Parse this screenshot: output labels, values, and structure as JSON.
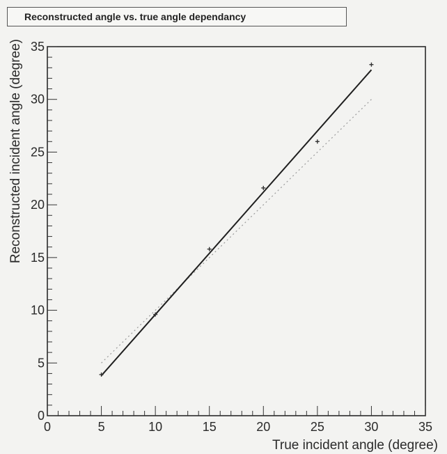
{
  "chart_data": {
    "type": "scatter",
    "title": "Reconstructed angle vs. true angle dependancy",
    "xlabel": "True incident angle (degree)",
    "ylabel": "Reconstructed incident angle (degree)",
    "xlim": [
      0,
      35
    ],
    "ylim": [
      0,
      35
    ],
    "x_ticks": [
      "0",
      "5",
      "10",
      "15",
      "20",
      "25",
      "30",
      "35"
    ],
    "y_ticks": [
      "0",
      "5",
      "10",
      "15",
      "20",
      "25",
      "30",
      "35"
    ],
    "grid": false,
    "legend": "none",
    "series": [
      {
        "points": [
          {
            "x": 5,
            "y": 3.9
          },
          {
            "x": 10,
            "y": 9.6
          },
          {
            "x": 15,
            "y": 15.8
          },
          {
            "x": 20,
            "y": 21.6
          },
          {
            "x": 25,
            "y": 26
          },
          {
            "x": 30,
            "y": 33.3
          }
        ]
      }
    ],
    "fit_line": {
      "x": [
        5,
        30
      ],
      "y": [
        3.8,
        32.8
      ]
    },
    "reference_line": {
      "x": [
        5,
        30
      ],
      "y": [
        5,
        30
      ]
    }
  }
}
